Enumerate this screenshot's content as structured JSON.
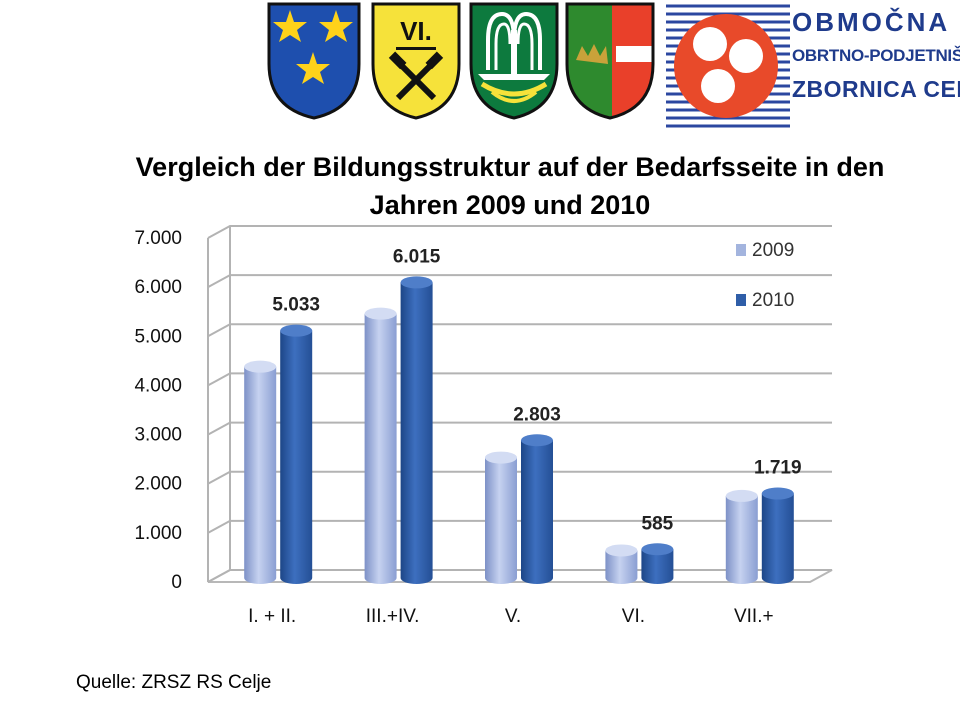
{
  "logos": {
    "crest_2": {
      "text": "VI."
    },
    "chamber": {
      "line1": "OBMOČNA",
      "line2": "OBRTNO-PODJETNIŠKA",
      "line3": "ZBORNICA CELJE"
    }
  },
  "title": {
    "line1": "Vergleich der Bildungsstruktur auf der Bedarfsseite in den",
    "line2": "Jahren 2009 und 2010"
  },
  "source": "Quelle: ZRSZ RS Celje",
  "chart_data": {
    "type": "bar",
    "categories": [
      "I. + II.",
      "III.+IV.",
      "V.",
      "VI.",
      "VII.+"
    ],
    "series": [
      {
        "name": "2009",
        "values": [
          4300,
          5380,
          2450,
          560,
          1670
        ],
        "color": "#a3b4de"
      },
      {
        "name": "2010",
        "values": [
          5033,
          6015,
          2803,
          585,
          1719
        ],
        "color": "#2f5ea8"
      }
    ],
    "data_labels": [
      "5.033",
      "6.015",
      "2.803",
      "585",
      "1.719"
    ],
    "y_ticks": [
      {
        "value": 0,
        "label": "0"
      },
      {
        "value": 1000,
        "label": "1.000"
      },
      {
        "value": 2000,
        "label": "2.000"
      },
      {
        "value": 3000,
        "label": "3.000"
      },
      {
        "value": 4000,
        "label": "4.000"
      },
      {
        "value": 5000,
        "label": "5.000"
      },
      {
        "value": 6000,
        "label": "6.000"
      },
      {
        "value": 7000,
        "label": "7.000"
      }
    ],
    "ylim": [
      0,
      7000
    ],
    "grid": true,
    "legend_position": "top-right"
  }
}
